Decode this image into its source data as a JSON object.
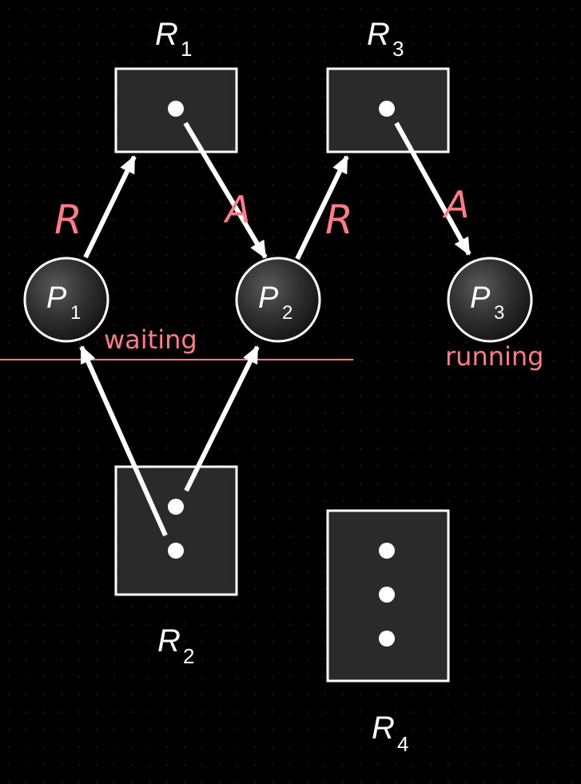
{
  "resources": {
    "r1": {
      "letter": "R",
      "subscript": "1"
    },
    "r2": {
      "letter": "R",
      "subscript": "2"
    },
    "r3": {
      "letter": "R",
      "subscript": "3"
    },
    "r4": {
      "letter": "R",
      "subscript": "4"
    }
  },
  "processes": {
    "p1": {
      "letter": "P",
      "subscript": "1"
    },
    "p2": {
      "letter": "P",
      "subscript": "2"
    },
    "p3": {
      "letter": "P",
      "subscript": "3"
    }
  },
  "annotations": {
    "p1_state": "waiting",
    "p3_state": "running",
    "edge_request_p1_r1": "R",
    "edge_assign_r1_p2": "A",
    "edge_request_p2_r3": "R",
    "edge_assign_r3_p3": "A"
  },
  "colors": {
    "annotation": "#ff7b86",
    "box_fill": "#2a2a2a",
    "stroke": "#ffffff"
  }
}
